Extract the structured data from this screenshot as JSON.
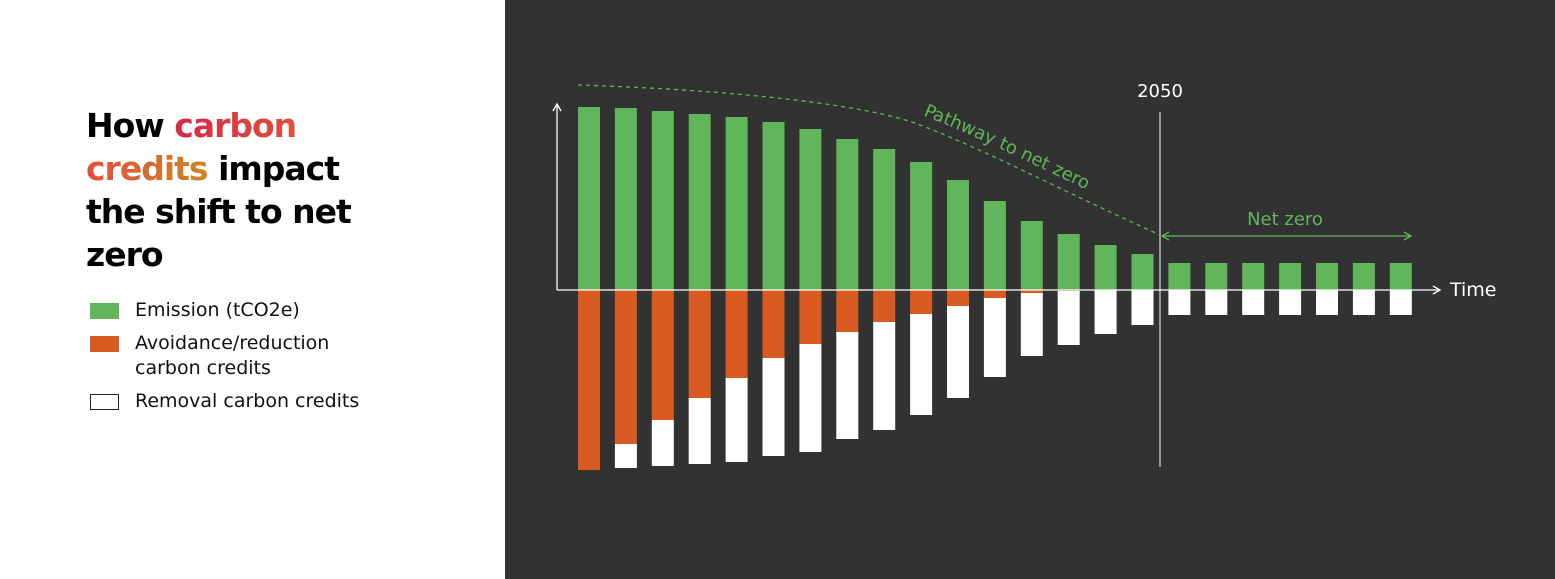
{
  "title": {
    "part1": "How ",
    "highlight": "carbon credits",
    "part2": " impact the shift to net zero",
    "highlight_gradient": [
      "#d8284a",
      "#e2533a",
      "#c98726"
    ]
  },
  "legend": [
    {
      "label": "Emission (tCO2e)",
      "color": "#61b55a",
      "outline": false
    },
    {
      "label": "Avoidance/reduction carbon credits",
      "color": "#d95b22",
      "outline": false
    },
    {
      "label": "Removal carbon credits",
      "color": "#ffffff",
      "outline": true
    }
  ],
  "chart_data": {
    "type": "bar",
    "xlabel": "Time",
    "ylabel": "",
    "milestone_label": "2050",
    "milestone_index": 16,
    "annotations": {
      "pathway": "Pathway to net zero",
      "net_zero": "Net zero"
    },
    "colors": {
      "emission": "#61b55a",
      "avoidance": "#d95b22",
      "removal": "#ffffff",
      "axis": "#ffffff",
      "annotation": "#61b55a"
    },
    "emission": [
      183,
      182,
      179,
      176,
      173,
      168,
      161,
      151,
      141,
      128,
      110,
      89,
      69,
      56,
      45,
      36,
      27,
      27,
      27,
      27,
      27,
      27,
      27
    ],
    "avoidance": [
      180,
      154,
      130,
      108,
      88,
      68,
      54,
      42,
      32,
      24,
      16,
      8,
      3,
      1,
      0,
      0,
      0,
      0,
      0,
      0,
      0,
      0,
      0
    ],
    "removal": [
      0,
      24,
      46,
      66,
      84,
      98,
      108,
      107,
      108,
      101,
      92,
      79,
      63,
      54,
      44,
      35,
      25,
      25,
      25,
      25,
      25,
      25,
      25
    ]
  }
}
